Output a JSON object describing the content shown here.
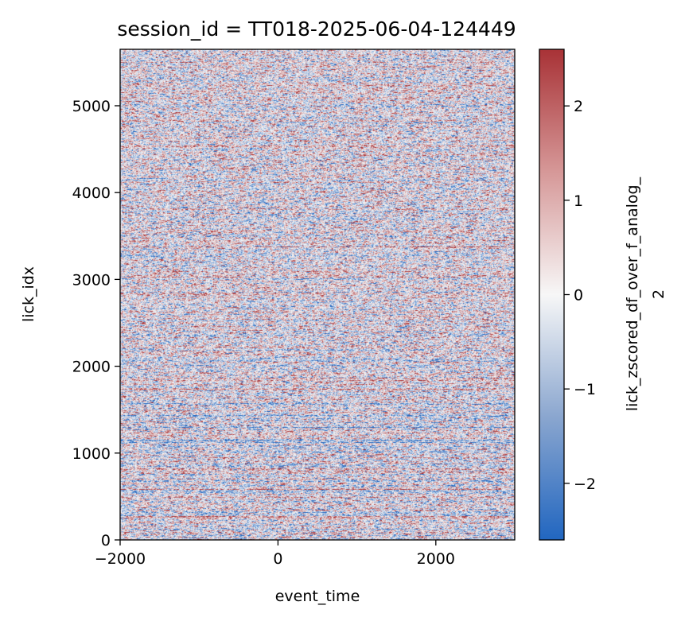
{
  "chart_data": {
    "type": "heatmap",
    "title": "session_id = TT018-2025-06-04-124449",
    "xlabel": "event_time",
    "ylabel": "lick_idx",
    "colorbar_label_line1": "lick_zscored_df_over_f_analog_",
    "colorbar_label_line2": "2",
    "xlim": [
      -2000,
      3000
    ],
    "ylim": [
      0,
      5650
    ],
    "xticks": [
      -2000,
      0,
      2000
    ],
    "xtick_labels": [
      "−2000",
      "0",
      "2000"
    ],
    "yticks": [
      0,
      1000,
      2000,
      3000,
      4000,
      5000
    ],
    "ytick_labels": [
      "0",
      "1000",
      "2000",
      "3000",
      "4000",
      "5000"
    ],
    "color_range": [
      -2.6,
      2.6
    ],
    "cticks": [
      -2,
      -1,
      0,
      1,
      2
    ],
    "ctick_labels": [
      "−2",
      "−1",
      "0",
      "1",
      "2"
    ],
    "colormap": "RdBu_r-like",
    "colormap_low": "#2166c0",
    "colormap_mid": "#f7f7f7",
    "colormap_high": "#a83236",
    "rows": 5650,
    "grid": false,
    "legend": "colorbar-right"
  }
}
